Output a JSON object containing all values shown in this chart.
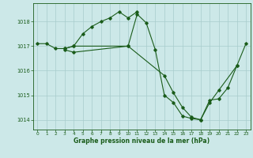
{
  "background_color": "#cce8e8",
  "plot_bg_color": "#cce8e8",
  "line_color": "#1a5c1a",
  "grid_color": "#a8cccc",
  "xlabel": "Graphe pression niveau de la mer (hPa)",
  "xlabel_color": "#1a5c1a",
  "tick_color": "#1a5c1a",
  "ylim": [
    1013.6,
    1018.75
  ],
  "xlim": [
    -0.5,
    23.5
  ],
  "yticks": [
    1014,
    1015,
    1016,
    1017,
    1018
  ],
  "xticks": [
    0,
    1,
    2,
    3,
    4,
    5,
    6,
    7,
    8,
    9,
    10,
    11,
    12,
    13,
    14,
    15,
    16,
    17,
    18,
    19,
    20,
    21,
    22,
    23
  ],
  "series": [
    {
      "x": [
        0,
        1,
        2,
        3,
        4,
        10,
        11,
        12,
        13,
        14,
        15,
        16,
        17,
        18,
        19,
        20,
        22,
        23
      ],
      "y": [
        1017.1,
        1017.1,
        1016.9,
        1016.9,
        1017.0,
        1017.0,
        1018.3,
        1017.95,
        1016.85,
        1015.0,
        1014.7,
        1014.15,
        1014.05,
        1014.0,
        1014.7,
        1015.2,
        1016.2,
        1017.1
      ]
    },
    {
      "x": [
        3,
        4,
        5,
        6,
        7,
        8,
        9,
        10,
        11
      ],
      "y": [
        1016.9,
        1017.0,
        1017.5,
        1017.8,
        1018.0,
        1018.15,
        1018.4,
        1018.15,
        1018.4
      ]
    },
    {
      "x": [
        3,
        4,
        10,
        14,
        15,
        16,
        17,
        18,
        19,
        20,
        21,
        22
      ],
      "y": [
        1016.85,
        1016.75,
        1017.0,
        1015.8,
        1015.1,
        1014.5,
        1014.1,
        1014.0,
        1014.8,
        1014.85,
        1015.3,
        1016.2
      ]
    }
  ]
}
